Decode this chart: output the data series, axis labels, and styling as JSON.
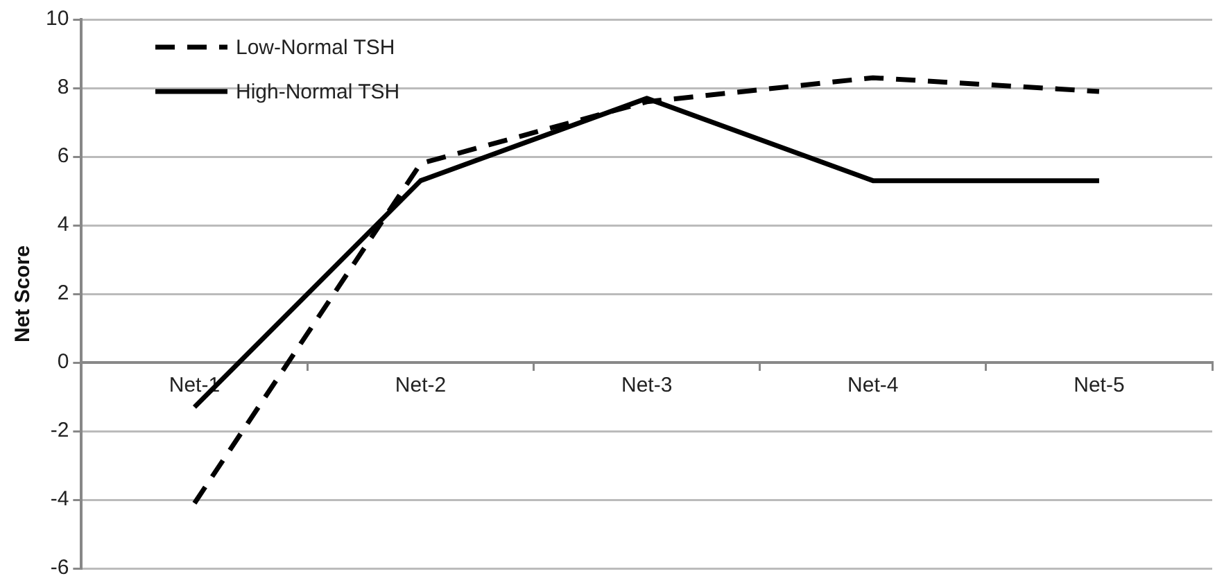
{
  "chart_data": {
    "type": "line",
    "ylabel": "Net Score",
    "categories": [
      "Net-1",
      "Net-2",
      "Net-3",
      "Net-4",
      "Net-5"
    ],
    "series": [
      {
        "name": "Low-Normal TSH",
        "color": "#000000",
        "line_style": "dashed",
        "values": [
          -4.1,
          5.8,
          7.6,
          8.3,
          7.9
        ]
      },
      {
        "name": "High-Normal TSH",
        "color": "#000000",
        "line_style": "solid",
        "values": [
          -1.3,
          5.3,
          7.7,
          5.3,
          5.3
        ]
      }
    ],
    "ylim": [
      -6,
      10
    ],
    "yticks": [
      -6,
      -4,
      -2,
      0,
      2,
      4,
      6,
      8,
      10
    ],
    "grid": "y",
    "legend": "top left",
    "marker": "none"
  }
}
